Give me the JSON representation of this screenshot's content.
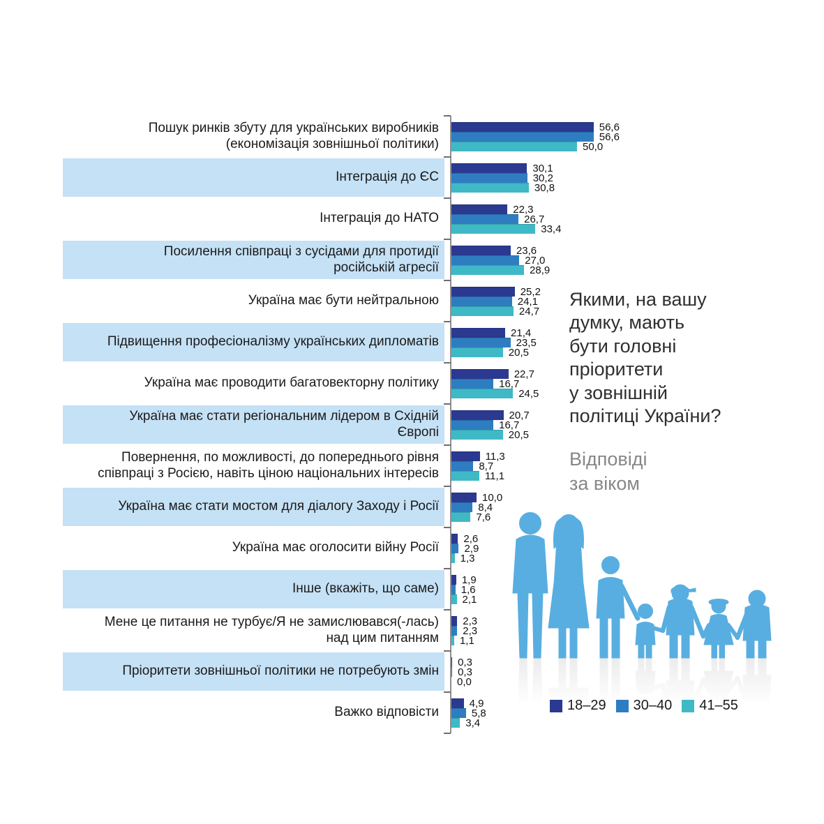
{
  "title": "Якими, на вашу\nдумку, мають\nбути головні\nпріоритети\nу зовнішній\nполітиці України?",
  "subtitle": "Відповіді\nза віком",
  "legend": {
    "items": [
      {
        "label": "18–29",
        "color": "#2B3990"
      },
      {
        "label": "30–40",
        "color": "#2E7DC1"
      },
      {
        "label": "41–55",
        "color": "#3FB9C6"
      }
    ]
  },
  "illustration": {
    "name": "family-silhouette",
    "color": "#58AEE0",
    "reflection_color": "#bfbfbf"
  },
  "styles": {
    "band_color": "#C5E1F5",
    "axis_color": "#8f8f8f",
    "tick_color": "#6f6f6f"
  },
  "chart_data": {
    "type": "bar",
    "orientation": "horizontal",
    "decimal_separator": ",",
    "xlim": [
      0,
      60
    ],
    "grid": false,
    "legend_position": "bottom-right",
    "categories": [
      {
        "label": "Пошук ринків збуту для українських виробників\n(економізація зовнішньої політики)",
        "banded": false
      },
      {
        "label": "Інтеграція до ЄС",
        "banded": true
      },
      {
        "label": "Інтеграція до НАТО",
        "banded": false
      },
      {
        "label": "Посилення співпраці з сусідами для протидії\nросійській агресії",
        "banded": true
      },
      {
        "label": "Україна має бути нейтральною",
        "banded": false
      },
      {
        "label": "Підвищення професіоналізму українських дипломатів",
        "banded": true
      },
      {
        "label": "Україна має проводити багатовекторну політику",
        "banded": false
      },
      {
        "label": "Україна має стати регіональним лідером в Східній\nЄвропі",
        "banded": true
      },
      {
        "label": "Повернення, по можливості, до попереднього рівня\nспівпраці з Росією, навіть ціною національних інтересів",
        "banded": false
      },
      {
        "label": "Україна має стати мостом для діалогу Заходу і Росії",
        "banded": true
      },
      {
        "label": "Україна має оголосити війну Росії",
        "banded": false
      },
      {
        "label": "Інше (вкажіть, що саме)",
        "banded": true
      },
      {
        "label": "Мене це питання не турбує/Я не замислювався(-лась)\nнад цим питанням",
        "banded": false
      },
      {
        "label": "Пріоритети зовнішньої політики не потребують змін",
        "banded": true
      },
      {
        "label": "Важко відповісти",
        "banded": false
      }
    ],
    "series": [
      {
        "name": "18–29",
        "color": "#2B3990",
        "values": [
          56.6,
          30.1,
          22.3,
          23.6,
          25.2,
          21.4,
          22.7,
          20.7,
          11.3,
          10.0,
          2.6,
          1.9,
          2.3,
          0.3,
          4.9
        ]
      },
      {
        "name": "30–40",
        "color": "#2E7DC1",
        "values": [
          56.6,
          30.2,
          26.7,
          27.0,
          24.1,
          23.5,
          16.7,
          16.7,
          8.7,
          8.4,
          2.9,
          1.6,
          2.3,
          0.3,
          5.8
        ]
      },
      {
        "name": "41–55",
        "color": "#3FB9C6",
        "values": [
          50.0,
          30.8,
          33.4,
          28.9,
          24.7,
          20.5,
          24.5,
          20.5,
          11.1,
          7.6,
          1.3,
          2.1,
          1.1,
          0.0,
          3.4
        ]
      }
    ]
  }
}
